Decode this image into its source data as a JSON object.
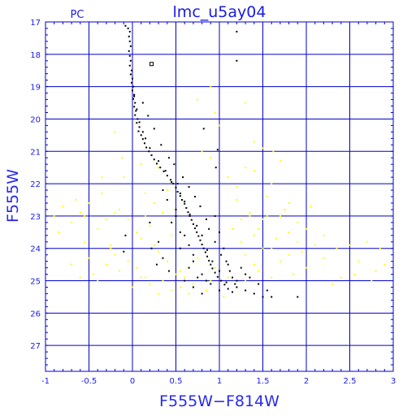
{
  "chart_data": {
    "type": "scatter",
    "title": "lmc_u5ay04",
    "corner_label": "PC",
    "xlabel": "F555W−F814W",
    "ylabel": "F555W",
    "xlim": [
      -1,
      3
    ],
    "ylim": [
      27.8,
      17
    ],
    "y_inverted": true,
    "grid": true,
    "x_ticks": [
      "-1",
      "-0.5",
      "0",
      "0.5",
      "1",
      "1.5",
      "2",
      "2.5",
      "3"
    ],
    "y_ticks": [
      "17",
      "18",
      "19",
      "20",
      "21",
      "22",
      "23",
      "24",
      "25",
      "26",
      "27"
    ],
    "colors": {
      "axis": "#0000c8",
      "grid": "#0000c8",
      "text": "#1a1ae6",
      "main_sequence": "#000000",
      "field": "#ffff00"
    },
    "series": [
      {
        "name": "",
        "color": "#000000",
        "points": [
          [
            -0.08,
            17.12
          ],
          [
            -0.05,
            17.2
          ],
          [
            -0.03,
            17.3
          ],
          [
            -0.04,
            17.45
          ],
          [
            -0.03,
            17.6
          ],
          [
            -0.02,
            17.75
          ],
          [
            -0.04,
            17.9
          ],
          [
            -0.03,
            18.05
          ],
          [
            -0.02,
            18.2
          ],
          [
            -0.03,
            18.35
          ],
          [
            -0.01,
            18.5
          ],
          [
            -0.02,
            18.62
          ],
          [
            0.0,
            18.75
          ],
          [
            -0.01,
            18.88
          ],
          [
            0.01,
            19.0
          ],
          [
            0.0,
            19.12
          ],
          [
            0.02,
            19.25
          ],
          [
            0.01,
            19.38
          ],
          [
            0.03,
            19.5
          ],
          [
            0.02,
            19.62
          ],
          [
            0.04,
            19.75
          ],
          [
            0.03,
            19.88
          ],
          [
            0.06,
            20.0
          ],
          [
            0.05,
            20.12
          ],
          [
            0.08,
            20.25
          ],
          [
            0.07,
            20.38
          ],
          [
            0.1,
            20.5
          ],
          [
            0.12,
            20.62
          ],
          [
            0.14,
            20.75
          ],
          [
            0.16,
            20.88
          ],
          [
            0.19,
            21.0
          ],
          [
            0.22,
            21.12
          ],
          [
            0.25,
            21.25
          ],
          [
            0.28,
            21.38
          ],
          [
            0.32,
            21.5
          ],
          [
            0.36,
            21.62
          ],
          [
            0.4,
            21.75
          ],
          [
            0.44,
            21.88
          ],
          [
            0.47,
            22.0
          ],
          [
            0.5,
            22.12
          ],
          [
            0.52,
            22.25
          ],
          [
            0.55,
            22.38
          ],
          [
            0.57,
            22.5
          ],
          [
            0.6,
            22.62
          ],
          [
            0.62,
            22.75
          ],
          [
            0.64,
            22.88
          ],
          [
            0.66,
            23.0
          ],
          [
            0.68,
            23.12
          ],
          [
            0.7,
            23.25
          ],
          [
            0.72,
            23.38
          ],
          [
            0.74,
            23.5
          ],
          [
            0.76,
            23.62
          ],
          [
            0.78,
            23.75
          ],
          [
            0.8,
            23.88
          ],
          [
            0.82,
            24.0
          ],
          [
            0.84,
            24.12
          ],
          [
            0.86,
            24.25
          ],
          [
            0.88,
            24.38
          ],
          [
            0.9,
            24.5
          ],
          [
            0.92,
            24.62
          ],
          [
            0.95,
            24.75
          ],
          [
            0.98,
            24.88
          ],
          [
            1.02,
            25.0
          ],
          [
            1.06,
            25.12
          ],
          [
            1.1,
            25.25
          ],
          [
            1.15,
            25.35
          ],
          [
            0.02,
            19.3
          ],
          [
            0.05,
            19.7
          ],
          [
            0.08,
            20.1
          ],
          [
            0.12,
            20.4
          ],
          [
            0.15,
            20.6
          ],
          [
            0.2,
            20.9
          ],
          [
            0.3,
            21.3
          ],
          [
            0.38,
            21.6
          ],
          [
            0.45,
            21.95
          ],
          [
            0.55,
            22.3
          ],
          [
            0.6,
            22.55
          ],
          [
            0.66,
            22.95
          ],
          [
            0.74,
            23.3
          ],
          [
            0.8,
            23.6
          ],
          [
            0.86,
            24.05
          ],
          [
            0.92,
            24.4
          ],
          [
            1.0,
            24.7
          ],
          [
            1.08,
            25.05
          ],
          [
            1.2,
            25.2
          ],
          [
            1.3,
            25.3
          ],
          [
            1.4,
            25.4
          ],
          [
            1.5,
            25.5
          ],
          [
            0.5,
            23.0
          ],
          [
            0.6,
            23.6
          ],
          [
            0.7,
            24.2
          ],
          [
            0.55,
            24.0
          ],
          [
            0.65,
            24.6
          ],
          [
            0.75,
            24.9
          ],
          [
            0.9,
            25.1
          ],
          [
            1.0,
            25.3
          ],
          [
            0.4,
            22.5
          ],
          [
            0.5,
            22.8
          ],
          [
            0.35,
            22.2
          ],
          [
            0.45,
            23.2
          ],
          [
            0.55,
            23.5
          ],
          [
            0.65,
            23.9
          ],
          [
            0.7,
            24.4
          ],
          [
            0.8,
            24.8
          ],
          [
            0.95,
            23.0
          ],
          [
            1.0,
            23.5
          ],
          [
            1.05,
            24.0
          ],
          [
            1.1,
            24.5
          ],
          [
            1.15,
            24.9
          ],
          [
            1.2,
            25.0
          ],
          [
            1.25,
            24.6
          ],
          [
            1.3,
            24.8
          ],
          [
            0.98,
            20.95
          ],
          [
            0.96,
            21.5
          ],
          [
            1.2,
            17.3
          ],
          [
            1.2,
            18.2
          ],
          [
            0.82,
            20.3
          ],
          [
            1.9,
            25.5
          ],
          [
            0.52,
            22.0
          ],
          [
            0.48,
            21.4
          ],
          [
            0.12,
            19.5
          ],
          [
            0.18,
            19.9
          ],
          [
            0.25,
            20.3
          ],
          [
            0.33,
            20.8
          ],
          [
            0.42,
            21.2
          ],
          [
            0.58,
            21.8
          ],
          [
            0.65,
            22.1
          ],
          [
            0.72,
            22.4
          ],
          [
            0.78,
            22.7
          ],
          [
            0.85,
            23.1
          ],
          [
            0.88,
            23.4
          ],
          [
            0.95,
            23.8
          ],
          [
            1.02,
            24.2
          ],
          [
            1.08,
            24.4
          ],
          [
            1.12,
            24.7
          ],
          [
            1.18,
            25.1
          ],
          [
            -0.08,
            23.6
          ],
          [
            -0.1,
            24.1
          ],
          [
            0.2,
            23.2
          ],
          [
            0.3,
            23.8
          ],
          [
            0.35,
            24.3
          ],
          [
            0.42,
            24.7
          ],
          [
            0.22,
            24.0
          ],
          [
            0.28,
            24.5
          ],
          [
            0.6,
            25.0
          ],
          [
            0.7,
            25.2
          ],
          [
            0.8,
            25.4
          ],
          [
            0.85,
            25.0
          ],
          [
            1.35,
            24.9
          ],
          [
            1.45,
            25.1
          ],
          [
            1.55,
            25.3
          ],
          [
            1.6,
            25.5
          ]
        ]
      },
      {
        "name": "",
        "color": "#ffff00",
        "points": [
          [
            -0.9,
            23.0
          ],
          [
            -0.85,
            23.5
          ],
          [
            -0.8,
            22.7
          ],
          [
            -0.7,
            23.2
          ],
          [
            -0.6,
            22.9
          ],
          [
            -0.55,
            23.8
          ],
          [
            -0.5,
            24.3
          ],
          [
            -0.45,
            24.8
          ],
          [
            -0.4,
            23.4
          ],
          [
            -0.35,
            22.3
          ],
          [
            -0.3,
            24.5
          ],
          [
            -0.25,
            23.9
          ],
          [
            -0.2,
            24.2
          ],
          [
            -0.15,
            22.8
          ],
          [
            -0.1,
            21.8
          ],
          [
            -0.05,
            23.1
          ],
          [
            0.05,
            24.6
          ],
          [
            0.1,
            23.7
          ],
          [
            0.15,
            24.9
          ],
          [
            0.2,
            23.3
          ],
          [
            0.25,
            22.6
          ],
          [
            0.3,
            24.1
          ],
          [
            0.35,
            25.0
          ],
          [
            0.4,
            24.4
          ],
          [
            0.45,
            23.6
          ],
          [
            0.5,
            24.8
          ],
          [
            0.55,
            25.2
          ],
          [
            0.6,
            24.9
          ],
          [
            0.65,
            25.4
          ],
          [
            0.7,
            25.1
          ],
          [
            0.75,
            24.3
          ],
          [
            0.85,
            25.3
          ],
          [
            0.95,
            24.6
          ],
          [
            1.05,
            25.5
          ],
          [
            1.15,
            23.4
          ],
          [
            1.2,
            22.5
          ],
          [
            1.25,
            23.8
          ],
          [
            1.3,
            24.2
          ],
          [
            1.35,
            22.9
          ],
          [
            1.4,
            23.6
          ],
          [
            1.45,
            24.7
          ],
          [
            1.5,
            23.1
          ],
          [
            1.55,
            22.4
          ],
          [
            1.6,
            24.0
          ],
          [
            1.65,
            23.7
          ],
          [
            1.7,
            24.4
          ],
          [
            1.75,
            22.8
          ],
          [
            1.8,
            23.5
          ],
          [
            1.85,
            24.8
          ],
          [
            1.9,
            23.2
          ],
          [
            1.95,
            24.1
          ],
          [
            2.0,
            24.6
          ],
          [
            2.1,
            23.9
          ],
          [
            2.2,
            24.3
          ],
          [
            2.3,
            25.1
          ],
          [
            2.4,
            24.9
          ],
          [
            2.6,
            24.4
          ],
          [
            2.7,
            23.8
          ],
          [
            2.8,
            24.7
          ],
          [
            2.9,
            24.5
          ],
          [
            1.4,
            20.7
          ],
          [
            1.5,
            20.9
          ],
          [
            1.3,
            21.5
          ],
          [
            1.1,
            21.8
          ],
          [
            0.8,
            21.0
          ],
          [
            0.9,
            21.2
          ],
          [
            0.95,
            19.8
          ],
          [
            1.0,
            20.2
          ],
          [
            0.75,
            19.4
          ],
          [
            1.7,
            21.3
          ],
          [
            1.6,
            22.0
          ],
          [
            1.2,
            22.1
          ],
          [
            -0.2,
            20.4
          ],
          [
            -0.12,
            21.2
          ],
          [
            -0.35,
            21.8
          ],
          [
            0.3,
            21.5
          ],
          [
            0.15,
            22.3
          ],
          [
            0.1,
            21.4
          ],
          [
            1.8,
            22.6
          ],
          [
            2.05,
            22.7
          ],
          [
            1.55,
            23.0
          ],
          [
            1.45,
            23.4
          ],
          [
            1.35,
            23.0
          ],
          [
            1.25,
            23.1
          ],
          [
            0.9,
            19.0
          ],
          [
            1.3,
            19.5
          ],
          [
            1.4,
            21.6
          ],
          [
            1.62,
            21.0
          ],
          [
            -0.7,
            24.5
          ],
          [
            -0.6,
            24.9
          ],
          [
            -0.5,
            22.6
          ],
          [
            -0.4,
            25.0
          ],
          [
            -0.3,
            23.1
          ],
          [
            -0.2,
            22.9
          ],
          [
            -0.55,
            23.0
          ],
          [
            -0.65,
            22.5
          ],
          [
            0.0,
            25.2
          ],
          [
            0.1,
            24.9
          ],
          [
            0.2,
            25.1
          ],
          [
            0.3,
            25.4
          ],
          [
            0.45,
            25.3
          ],
          [
            0.55,
            24.7
          ],
          [
            0.65,
            24.6
          ],
          [
            0.9,
            25.0
          ],
          [
            1.1,
            24.9
          ],
          [
            1.2,
            25.2
          ],
          [
            1.3,
            25.0
          ],
          [
            1.4,
            24.5
          ],
          [
            1.5,
            24.0
          ],
          [
            1.6,
            24.9
          ],
          [
            1.7,
            23.0
          ],
          [
            1.8,
            24.2
          ],
          [
            1.9,
            23.8
          ],
          [
            2.0,
            23.4
          ],
          [
            2.2,
            23.6
          ],
          [
            2.35,
            24.0
          ],
          [
            2.5,
            23.9
          ],
          [
            2.55,
            24.8
          ],
          [
            2.75,
            25.0
          ],
          [
            2.85,
            24.0
          ],
          [
            0.4,
            22.2
          ],
          [
            0.35,
            22.9
          ],
          [
            0.25,
            23.9
          ],
          [
            0.15,
            23.0
          ],
          [
            0.05,
            23.5
          ],
          [
            -0.05,
            24.4
          ],
          [
            -0.15,
            24.7
          ],
          [
            -0.25,
            24.0
          ]
        ]
      }
    ],
    "annotations": [
      {
        "type": "open-square",
        "x": 0.22,
        "y": 18.3
      }
    ]
  }
}
